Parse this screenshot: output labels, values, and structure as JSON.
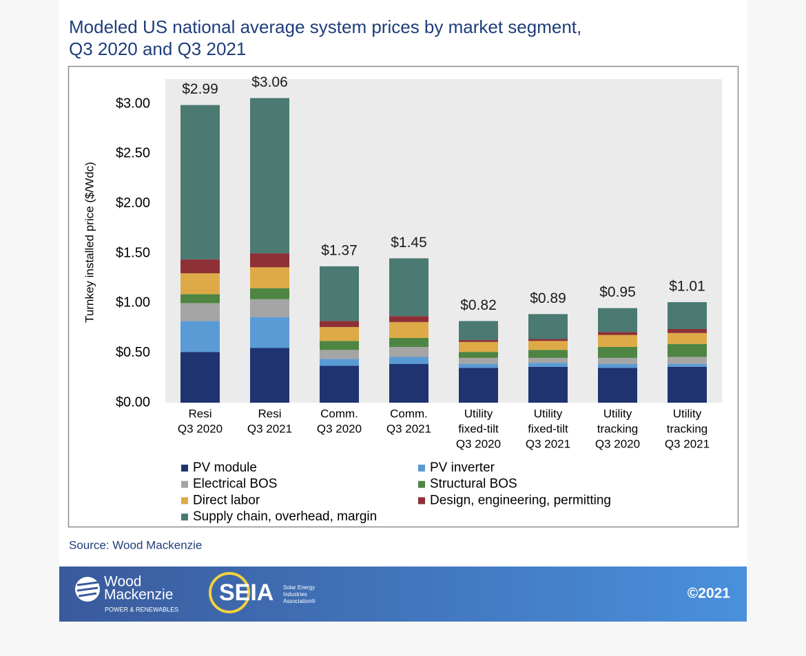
{
  "chart_data": {
    "type": "stacked-bar",
    "title": [
      "Modeled US national average system prices by market segment,",
      "Q3 2020 and Q3 2021"
    ],
    "y_label": "Turnkey installed price ($/Wdc)",
    "source": "Source: Wood Mackenzie",
    "categories": [
      [
        "Resi",
        "Q3 2020"
      ],
      [
        "Resi",
        "Q3 2021"
      ],
      [
        "Comm.",
        "Q3 2020"
      ],
      [
        "Comm.",
        "Q3 2021"
      ],
      [
        "Utility",
        "fixed-tilt",
        "Q3 2020"
      ],
      [
        "Utility",
        "fixed-tilt",
        "Q3 2021"
      ],
      [
        "Utility",
        "tracking",
        "Q3 2020"
      ],
      [
        "Utility",
        "tracking",
        "Q3 2021"
      ]
    ],
    "series": [
      {
        "name": "PV module",
        "color": "#1f3370",
        "values": [
          0.51,
          0.55,
          0.37,
          0.39,
          0.35,
          0.36,
          0.35,
          0.36
        ]
      },
      {
        "name": "PV inverter",
        "color": "#5b9bd5",
        "values": [
          0.31,
          0.31,
          0.07,
          0.07,
          0.04,
          0.04,
          0.04,
          0.03
        ]
      },
      {
        "name": "Electrical BOS",
        "color": "#a5a5a5",
        "values": [
          0.18,
          0.18,
          0.09,
          0.1,
          0.06,
          0.05,
          0.06,
          0.07
        ]
      },
      {
        "name": "Structural BOS",
        "color": "#4e8542",
        "values": [
          0.09,
          0.11,
          0.09,
          0.09,
          0.06,
          0.08,
          0.11,
          0.13
        ]
      },
      {
        "name": "Direct labor",
        "color": "#deaa48",
        "values": [
          0.21,
          0.21,
          0.14,
          0.16,
          0.1,
          0.09,
          0.12,
          0.11
        ]
      },
      {
        "name": "Design, engineering, permitting",
        "color": "#8e3036",
        "values": [
          0.14,
          0.14,
          0.06,
          0.06,
          0.02,
          0.02,
          0.03,
          0.04
        ]
      },
      {
        "name": "Supply chain, overhead, margin",
        "color": "#4a7a72",
        "values": [
          1.55,
          1.56,
          0.55,
          0.58,
          0.19,
          0.25,
          0.24,
          0.27
        ]
      }
    ],
    "totals": {
      "values": [
        2.99,
        3.06,
        1.37,
        1.45,
        0.82,
        0.89,
        0.95,
        1.01
      ],
      "value_labels": [
        "$2.99",
        "$3.06",
        "$1.37",
        "$1.45",
        "$0.82",
        "$0.89",
        "$0.95",
        "$1.01"
      ]
    },
    "ylim": [
      0,
      3.25
    ],
    "yticks": [
      {
        "value": 0,
        "label": "$0.00"
      },
      {
        "value": 0.5,
        "label": "$0.50"
      },
      {
        "value": 1,
        "label": "$1.00"
      },
      {
        "value": 1.5,
        "label": "$1.50"
      },
      {
        "value": 2,
        "label": "$2.00"
      },
      {
        "value": 2.5,
        "label": "$2.50"
      },
      {
        "value": 3,
        "label": "$3.00"
      }
    ],
    "grid": false
  },
  "footer": {
    "wm_line1": "Wood",
    "wm_line2": "Mackenzie",
    "wm_sub": "POWER & RENEWABLES",
    "seia": "SEIA",
    "seia_sub": [
      "Solar Energy",
      "Industries",
      "Association®"
    ],
    "copyright": "©2021"
  }
}
